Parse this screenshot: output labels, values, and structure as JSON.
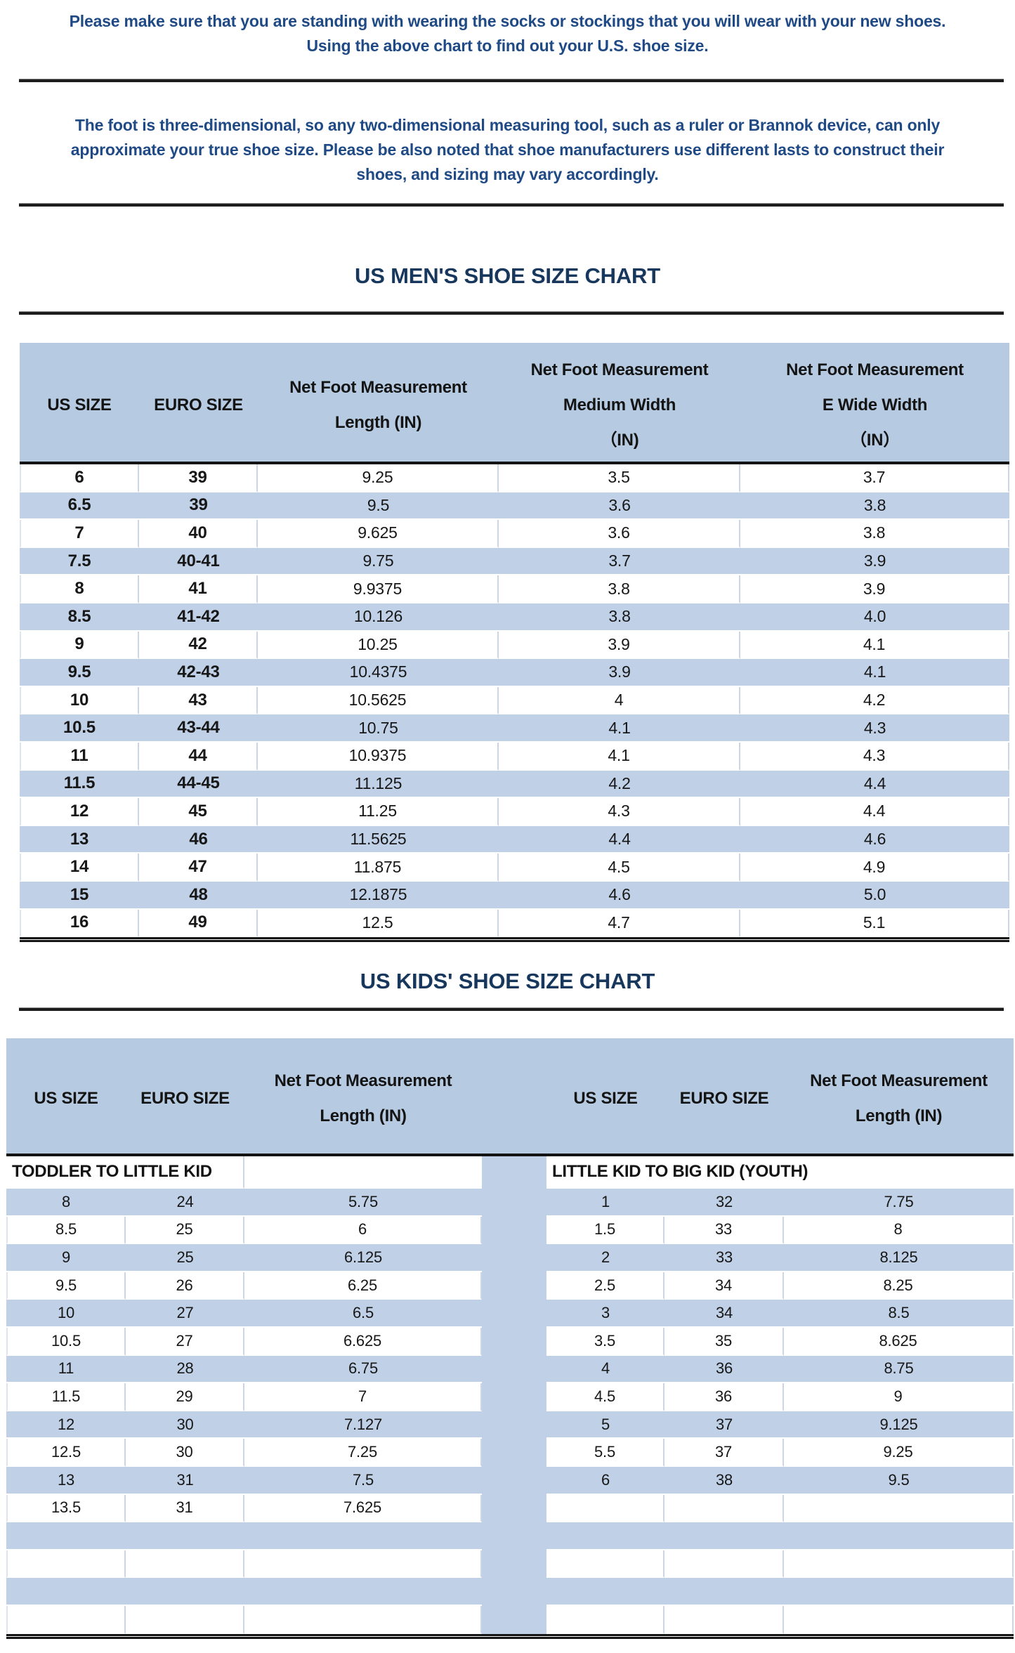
{
  "intro": {
    "line1": "Please make sure that you are standing with wearing the socks or stockings that you will wear with your new shoes.",
    "line2": "Using the above chart to find out your U.S. shoe size."
  },
  "note": {
    "line1": "The foot is three-dimensional, so any two-dimensional measuring tool, such as a ruler or Brannok device, can only",
    "line2": "approximate your true shoe size. Please be also noted that shoe manufacturers use different lasts to construct their",
    "line3": "shoes, and sizing may vary accordingly."
  },
  "mens_chart": {
    "title": "US MEN'S SHOE SIZE CHART",
    "columns": [
      {
        "lines": [
          "US SIZE"
        ]
      },
      {
        "lines": [
          "EURO SIZE"
        ]
      },
      {
        "lines": [
          "Net Foot Measurement",
          "Length (IN)"
        ]
      },
      {
        "lines": [
          "Net Foot Measurement",
          "Medium Width",
          "（IN)"
        ]
      },
      {
        "lines": [
          "Net Foot Measurement",
          "E Wide Width",
          "（IN）"
        ]
      }
    ],
    "rows": [
      [
        "6",
        "39",
        "9.25",
        "3.5",
        "3.7"
      ],
      [
        "6.5",
        "39",
        "9.5",
        "3.6",
        "3.8"
      ],
      [
        "7",
        "40",
        "9.625",
        "3.6",
        "3.8"
      ],
      [
        "7.5",
        "40-41",
        "9.75",
        "3.7",
        "3.9"
      ],
      [
        "8",
        "41",
        "9.9375",
        "3.8",
        "3.9"
      ],
      [
        "8.5",
        "41-42",
        "10.126",
        "3.8",
        "4.0"
      ],
      [
        "9",
        "42",
        "10.25",
        "3.9",
        "4.1"
      ],
      [
        "9.5",
        "42-43",
        "10.4375",
        "3.9",
        "4.1"
      ],
      [
        "10",
        "43",
        "10.5625",
        "4",
        "4.2"
      ],
      [
        "10.5",
        "43-44",
        "10.75",
        "4.1",
        "4.3"
      ],
      [
        "11",
        "44",
        "10.9375",
        "4.1",
        "4.3"
      ],
      [
        "11.5",
        "44-45",
        "11.125",
        "4.2",
        "4.4"
      ],
      [
        "12",
        "45",
        "11.25",
        "4.3",
        "4.4"
      ],
      [
        "13",
        "46",
        "11.5625",
        "4.4",
        "4.6"
      ],
      [
        "14",
        "47",
        "11.875",
        "4.5",
        "4.9"
      ],
      [
        "15",
        "48",
        "12.1875",
        "4.6",
        "5.0"
      ],
      [
        "16",
        "49",
        "12.5",
        "4.7",
        "5.1"
      ]
    ]
  },
  "kids_chart": {
    "title": "US KIDS' SHOE SIZE CHART",
    "columns": [
      {
        "lines": [
          "US SIZE"
        ]
      },
      {
        "lines": [
          "EURO SIZE"
        ]
      },
      {
        "lines": [
          "Net Foot Measurement",
          "Length (IN)"
        ]
      },
      {
        "lines": [
          "US SIZE"
        ]
      },
      {
        "lines": [
          "EURO SIZE"
        ]
      },
      {
        "lines": [
          "Net Foot Measurement",
          "Length (IN)"
        ]
      }
    ],
    "left_section": "TODDLER TO LITTLE KID",
    "right_section": "LITTLE KID TO BIG KID (YOUTH)",
    "rows": [
      {
        "left": [
          "8",
          "24",
          "5.75"
        ],
        "right": [
          "1",
          "32",
          "7.75"
        ]
      },
      {
        "left": [
          "8.5",
          "25",
          "6"
        ],
        "right": [
          "1.5",
          "33",
          "8"
        ]
      },
      {
        "left": [
          "9",
          "25",
          "6.125"
        ],
        "right": [
          "2",
          "33",
          "8.125"
        ]
      },
      {
        "left": [
          "9.5",
          "26",
          "6.25"
        ],
        "right": [
          "2.5",
          "34",
          "8.25"
        ]
      },
      {
        "left": [
          "10",
          "27",
          "6.5"
        ],
        "right": [
          "3",
          "34",
          "8.5"
        ]
      },
      {
        "left": [
          "10.5",
          "27",
          "6.625"
        ],
        "right": [
          "3.5",
          "35",
          "8.625"
        ]
      },
      {
        "left": [
          "11",
          "28",
          "6.75"
        ],
        "right": [
          "4",
          "36",
          "8.75"
        ]
      },
      {
        "left": [
          "11.5",
          "29",
          "7"
        ],
        "right": [
          "4.5",
          "36",
          "9"
        ]
      },
      {
        "left": [
          "12",
          "30",
          "7.127"
        ],
        "right": [
          "5",
          "37",
          "9.125"
        ]
      },
      {
        "left": [
          "12.5",
          "30",
          "7.25"
        ],
        "right": [
          "5.5",
          "37",
          "9.25"
        ]
      },
      {
        "left": [
          "13",
          "31",
          "7.5"
        ],
        "right": [
          "6",
          "38",
          "9.5"
        ]
      },
      {
        "left": [
          "13.5",
          "31",
          "7.625"
        ],
        "right": [
          "",
          "",
          ""
        ]
      },
      {
        "left": [
          "",
          "",
          ""
        ],
        "right": [
          "",
          "",
          ""
        ]
      },
      {
        "left": [
          "",
          "",
          ""
        ],
        "right": [
          "",
          "",
          ""
        ]
      },
      {
        "left": [
          "",
          "",
          ""
        ],
        "right": [
          "",
          "",
          ""
        ]
      },
      {
        "left": [
          "",
          "",
          ""
        ],
        "right": [
          "",
          "",
          ""
        ]
      }
    ]
  },
  "colors": {
    "header_blue": "#b6cbe2",
    "row_blue": "#c0d1e7",
    "title_navy": "#17375d",
    "text_navy": "#1f4a85"
  }
}
